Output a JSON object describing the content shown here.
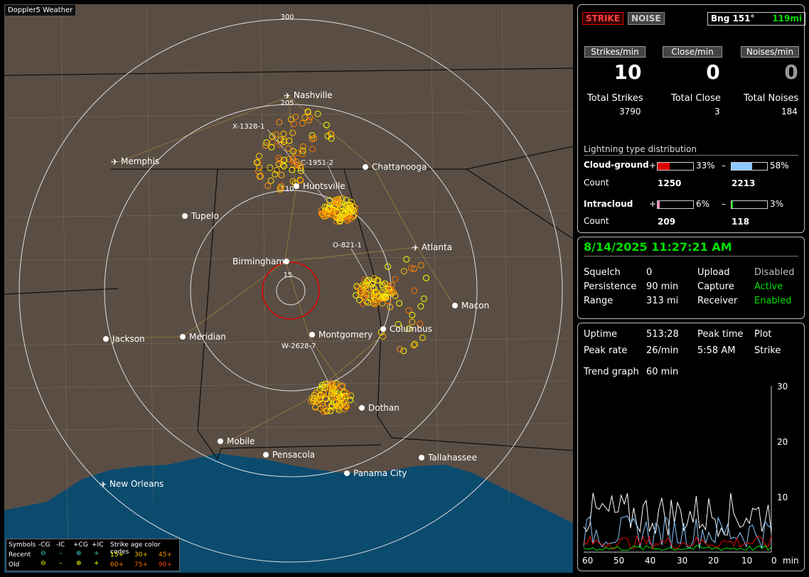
{
  "app_title": "Doppler5 Weather",
  "map": {
    "range_labels": [
      "300",
      "205",
      "110",
      "15"
    ],
    "cities": [
      {
        "name": "Nashville",
        "type": "airport"
      },
      {
        "name": "Memphis",
        "type": "airport"
      },
      {
        "name": "Chattanooga",
        "type": "city"
      },
      {
        "name": "Huntsville",
        "type": "city"
      },
      {
        "name": "Tupelo",
        "type": "city"
      },
      {
        "name": "Birmingham",
        "type": "city"
      },
      {
        "name": "Atlanta",
        "type": "airport"
      },
      {
        "name": "Macon",
        "type": "city"
      },
      {
        "name": "Columbus",
        "type": "city"
      },
      {
        "name": "Montgomery",
        "type": "city"
      },
      {
        "name": "Jackson",
        "type": "city"
      },
      {
        "name": "Meridian",
        "type": "city"
      },
      {
        "name": "Dothan",
        "type": "city"
      },
      {
        "name": "Mobile",
        "type": "city"
      },
      {
        "name": "Pensacola",
        "type": "city"
      },
      {
        "name": "Tallahassee",
        "type": "city"
      },
      {
        "name": "Panama City",
        "type": "city"
      },
      {
        "name": "New Orleans",
        "type": "airport"
      }
    ],
    "cell_tags": [
      "X-1328-1",
      "C-1951-2",
      "O-821-1",
      "W-2628-7"
    ],
    "legend": {
      "symbols_label": "Symbols",
      "neg_cg": "-CG",
      "neg_ic": "-IC",
      "pos_cg": "+CG",
      "pos_ic": "+IC",
      "age_title": "Strike age color codes",
      "recent": "Recent",
      "old": "Old",
      "ages_recent": [
        "15+",
        "30+",
        "45+"
      ],
      "ages_old": [
        "60+",
        "75+",
        "90+"
      ]
    }
  },
  "status": {
    "strike_btn": "STRIKE",
    "noise_btn": "NOISE",
    "bearing": "Bng 151°",
    "distance": "119mi",
    "strikes_per_min_label": "Strikes/min",
    "close_per_min_label": "Close/min",
    "noises_per_min_label": "Noises/min",
    "strikes_per_min": "10",
    "close_per_min": "0",
    "noises_per_min": "0",
    "total_strikes_label": "Total Strikes",
    "total_close_label": "Total Close",
    "total_noises_label": "Total Noises",
    "total_strikes": "3790",
    "total_close": "3",
    "total_noises": "184",
    "dist_title": "Lightning type distribution",
    "cg_label": "Cloud-ground",
    "cg_pos_pct": "33%",
    "cg_neg_pct": "58%",
    "cg_pos_frac": 0.33,
    "cg_neg_frac": 0.58,
    "count_label": "Count",
    "cg_pos_count": "1250",
    "cg_neg_count": "2213",
    "ic_label": "Intracloud",
    "ic_pos_pct": "6%",
    "ic_neg_pct": "3%",
    "ic_pos_frac": 0.06,
    "ic_neg_frac": 0.03,
    "ic_pos_count": "209",
    "ic_neg_count": "118",
    "plus": "+",
    "minus": "–"
  },
  "info": {
    "datetime": "8/14/2025 11:27:21 AM",
    "squelch_label": "Squelch",
    "squelch": "0",
    "persistence_label": "Persistence",
    "persistence": "90 min",
    "range_label": "Range",
    "range": "313 mi",
    "upload_label": "Upload",
    "upload": "Disabled",
    "capture_label": "Capture",
    "capture": "Active",
    "receiver_label": "Receiver",
    "receiver": "Enabled"
  },
  "trend": {
    "uptime_label": "Uptime",
    "uptime": "513:28",
    "peak_time_label": "Peak time",
    "peak_time": "5:58 AM",
    "plot_label": "Plot",
    "plot": "Strike",
    "peak_rate_label": "Peak rate",
    "peak_rate": "26/min",
    "trend_graph_label": "Trend graph",
    "trend_graph": "60 min",
    "y_ticks": [
      "30",
      "20",
      "10"
    ],
    "x_ticks": [
      "60",
      "50",
      "40",
      "30",
      "20",
      "10",
      "0"
    ],
    "x_unit": "min"
  },
  "colors": {
    "accent_green": "#00e000",
    "strike_red": "#e00000",
    "neg_blue": "#8ec9ff",
    "pos_pink": "#ff88bb",
    "map_land": "#5a4e44",
    "map_water": "#0b4b6e"
  }
}
